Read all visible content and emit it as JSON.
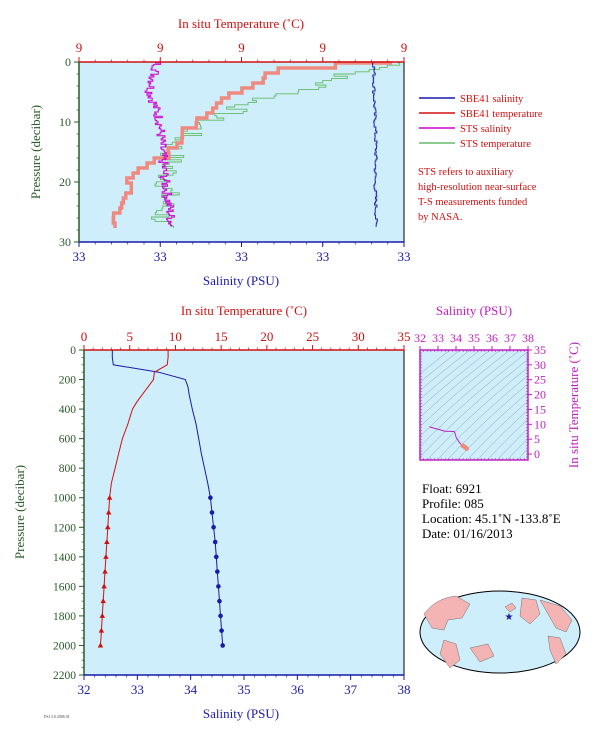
{
  "colors": {
    "plot_bg": "#cdeefa",
    "salinity": "#1a1aaa",
    "temperature": "#d01010",
    "sts_salinity": "#d000d0",
    "sts_temperature": "#66bb66",
    "sts_temp_fill": "#f08a80",
    "pressure_axis": "#2a5a2a",
    "ts_axis": "#c020c0"
  },
  "top_panel": {
    "top_axis_label": "In situ Temperature (˚C)",
    "top_ticks": [
      "9",
      "9",
      "9",
      "9",
      "9"
    ],
    "bottom_axis_label": "Salinity (PSU)",
    "bottom_ticks": [
      "33",
      "33",
      "33",
      "33",
      "33"
    ],
    "y_axis_label": "Pressure (decibar)",
    "y_ticks": [
      "0",
      "10",
      "20",
      "30"
    ],
    "legend": [
      {
        "label": "SBE41 salinity",
        "color": "#1a1aaa"
      },
      {
        "label": "SBE41 temperature",
        "color": "#d01010"
      },
      {
        "label": "STS salinity",
        "color": "#d000d0"
      },
      {
        "label": "STS temperature",
        "color": "#66bb66"
      }
    ],
    "note": [
      "STS refers to auxiliary",
      "high-resolution near-surface",
      "T-S measurements funded",
      "by NASA."
    ]
  },
  "main_panel": {
    "top_axis_label": "In situ Temperature (˚C)",
    "top_ticks": [
      "0",
      "5",
      "10",
      "15",
      "20",
      "25",
      "30",
      "35"
    ],
    "bottom_axis_label": "Salinity (PSU)",
    "bottom_ticks": [
      "32",
      "33",
      "34",
      "35",
      "36",
      "37",
      "38"
    ],
    "y_axis_label": "Pressure (decibar)",
    "y_ticks": [
      "0",
      "200",
      "400",
      "600",
      "800",
      "1000",
      "1200",
      "1400",
      "1600",
      "1800",
      "2000",
      "2200"
    ]
  },
  "ts_panel": {
    "top_axis_label": "Salinity (PSU)",
    "top_ticks": [
      "32",
      "33",
      "34",
      "35",
      "36",
      "37",
      "38"
    ],
    "right_axis_label": "In situ Temperature (˚C)",
    "right_ticks": [
      "0",
      "5",
      "10",
      "15",
      "20",
      "25",
      "30",
      "35"
    ]
  },
  "float_info": {
    "float": "Float:  6921",
    "profile": "Profile:  085",
    "location": "Location:  45.1˚N  -133.8˚E",
    "date": "Date:  01/16/2013"
  },
  "footer_code": "FSI 3.0 2006.01",
  "chart_data": [
    {
      "type": "line",
      "panel": "main",
      "x_axis": "salinity_psu",
      "secondary_x_axis": "temperature_c",
      "y_axis": "pressure_decibar",
      "xlim_salinity": [
        32,
        38
      ],
      "xlim_temperature": [
        0,
        35
      ],
      "ylim": [
        0,
        2200
      ],
      "y_inverted": true,
      "series": [
        {
          "name": "SBE41 salinity",
          "pressure": [
            0,
            50,
            100,
            150,
            200,
            250,
            300,
            350,
            400,
            500,
            600,
            700,
            800,
            900,
            1000,
            1100,
            1200,
            1300,
            1400,
            1500,
            1600,
            1700,
            1800,
            1900,
            2000
          ],
          "values": [
            32.53,
            32.53,
            32.55,
            33.4,
            33.9,
            33.95,
            33.97,
            34.0,
            34.03,
            34.1,
            34.15,
            34.2,
            34.26,
            34.32,
            34.37,
            34.4,
            34.43,
            34.46,
            34.48,
            34.5,
            34.52,
            34.54,
            34.56,
            34.58,
            34.6
          ]
        },
        {
          "name": "SBE41 temperature",
          "pressure": [
            0,
            50,
            100,
            150,
            200,
            250,
            300,
            350,
            400,
            500,
            600,
            700,
            800,
            900,
            1000,
            1100,
            1200,
            1300,
            1400,
            1500,
            1600,
            1700,
            1800,
            1900,
            2000
          ],
          "values": [
            9.2,
            9.2,
            9.1,
            7.7,
            7.6,
            7.0,
            6.4,
            5.8,
            5.3,
            4.8,
            4.2,
            3.8,
            3.4,
            3.0,
            2.8,
            2.7,
            2.6,
            2.5,
            2.4,
            2.3,
            2.2,
            2.1,
            2.0,
            1.9,
            1.8
          ]
        }
      ]
    },
    {
      "type": "line",
      "panel": "top",
      "x_axis": "salinity_psu",
      "secondary_x_axis": "temperature_c",
      "y_axis": "pressure_decibar",
      "ylim": [
        0,
        30
      ],
      "y_inverted": true,
      "series": [
        {
          "name": "SBE41 salinity"
        },
        {
          "name": "SBE41 temperature"
        },
        {
          "name": "STS salinity"
        },
        {
          "name": "STS temperature"
        }
      ]
    },
    {
      "type": "scatter",
      "panel": "ts",
      "x_axis": "salinity_psu",
      "y_axis": "temperature_c",
      "xlim": [
        32,
        38
      ],
      "ylim": [
        -2,
        35
      ]
    }
  ]
}
